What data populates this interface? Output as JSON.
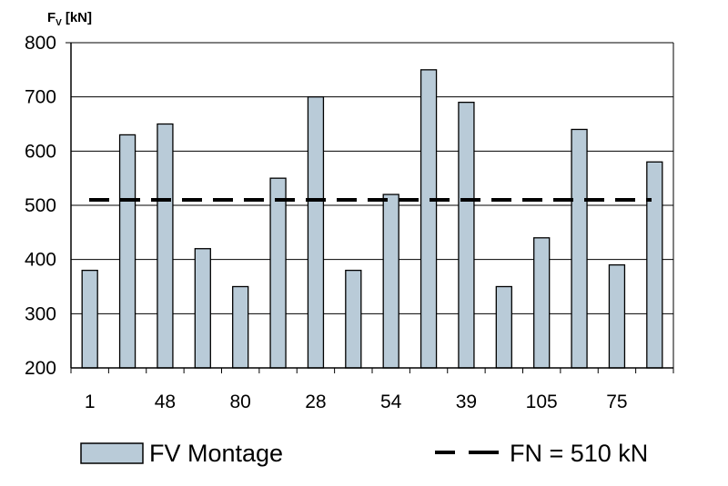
{
  "chart_data": {
    "type": "bar",
    "ylabel_main": "F",
    "ylabel_sub": "V",
    "ylabel_unit": "[kN]",
    "ylim": [
      200,
      800
    ],
    "yticks": [
      200,
      300,
      400,
      500,
      600,
      700,
      800
    ],
    "x_tick_labels": [
      "1",
      "48",
      "80",
      "28",
      "54",
      "39",
      "105",
      "75"
    ],
    "grid": true,
    "legend_position": "bottom",
    "series": [
      {
        "name": "FV Montage",
        "color": "#b9cbd8",
        "values": [
          380,
          630,
          650,
          420,
          350,
          550,
          700,
          380,
          520,
          750,
          690,
          350,
          440,
          640,
          390,
          580
        ]
      }
    ],
    "reference_line": {
      "name": "FN = 510 kN",
      "value": 510,
      "style": "dashed",
      "color": "#000000"
    }
  }
}
